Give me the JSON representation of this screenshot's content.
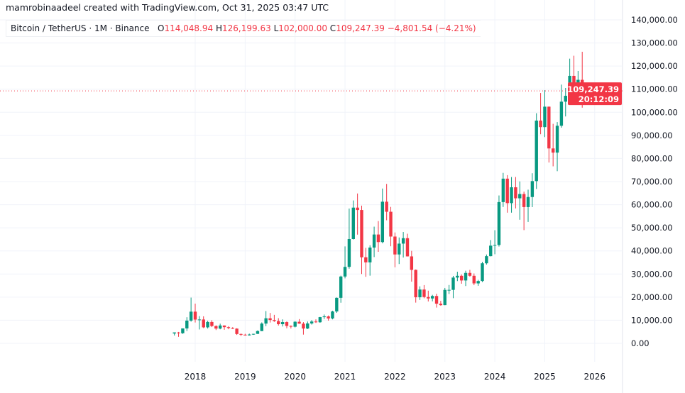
{
  "header": {
    "credit": "mamrobinaadeel created with TradingView.com, Oct 31, 2025 03:47 UTC",
    "symbol": "Bitcoin / TetherUS · 1M · Binance",
    "o_label": "O",
    "o": "114,048.94",
    "h_label": "H",
    "h": "126,199.63",
    "l_label": "L",
    "l": "102,000.00",
    "c_label": "C",
    "c": "109,247.39",
    "change": "−4,801.54 (−4.21%)"
  },
  "price_label": {
    "price": "109,247.39",
    "countdown": "20:12:09"
  },
  "colors": {
    "up": "#089981",
    "down": "#f23645",
    "grid": "#f0f3fa",
    "text": "#131722"
  },
  "chart_data": {
    "type": "candlestick",
    "interval": "1M",
    "y_axis_position": "right",
    "ylim": [
      0,
      140000
    ],
    "yticks": [
      "0.00",
      "10,000.00",
      "20,000.00",
      "30,000.00",
      "40,000.00",
      "50,000.00",
      "60,000.00",
      "70,000.00",
      "80,000.00",
      "90,000.00",
      "100,000.00",
      "110,000.00",
      "120,000.00",
      "130,000.00",
      "140,000.00"
    ],
    "xticks": [
      "2018",
      "2019",
      "2020",
      "2021",
      "2022",
      "2023",
      "2024",
      "2025",
      "2026"
    ],
    "grid": true,
    "last_price": 109247.39,
    "candles_fields": [
      "month",
      "open",
      "high",
      "low",
      "close"
    ],
    "candles": [
      [
        "2017-08",
        4261,
        4745,
        3400,
        4724
      ],
      [
        "2017-09",
        4689,
        4939,
        2817,
        4378
      ],
      [
        "2017-10",
        4378,
        6470,
        4110,
        6463
      ],
      [
        "2017-11",
        6463,
        11300,
        5325,
        9838
      ],
      [
        "2017-12",
        9838,
        19798,
        9380,
        13716
      ],
      [
        "2018-01",
        13716,
        17176,
        9035,
        10285
      ],
      [
        "2018-02",
        10285,
        11786,
        6000,
        10326
      ],
      [
        "2018-03",
        10326,
        11700,
        6600,
        6923
      ],
      [
        "2018-04",
        6923,
        9759,
        6430,
        9246
      ],
      [
        "2018-05",
        9246,
        10020,
        7034,
        7494
      ],
      [
        "2018-06",
        7494,
        7786,
        5755,
        6391
      ],
      [
        "2018-07",
        6391,
        8506,
        6070,
        7730
      ],
      [
        "2018-08",
        7730,
        7750,
        5880,
        7011
      ],
      [
        "2018-09",
        7011,
        7410,
        6100,
        6626
      ],
      [
        "2018-10",
        6626,
        7000,
        6200,
        6371
      ],
      [
        "2018-11",
        6371,
        6525,
        3652,
        4041
      ],
      [
        "2018-12",
        4041,
        4255,
        3156,
        3742
      ],
      [
        "2019-01",
        3742,
        4140,
        3349,
        3458
      ],
      [
        "2019-02",
        3458,
        4198,
        3373,
        3813
      ],
      [
        "2019-03",
        3813,
        4140,
        3670,
        4106
      ],
      [
        "2019-04",
        4106,
        5600,
        4038,
        5320
      ],
      [
        "2019-05",
        5320,
        9074,
        5300,
        8555
      ],
      [
        "2019-06",
        8555,
        13970,
        7440,
        10855
      ],
      [
        "2019-07",
        10855,
        13147,
        9010,
        10085
      ],
      [
        "2019-08",
        10085,
        12325,
        9320,
        9630
      ],
      [
        "2019-09",
        9630,
        10905,
        7710,
        8293
      ],
      [
        "2019-10",
        8293,
        10370,
        7300,
        9199
      ],
      [
        "2019-11",
        9199,
        9505,
        6515,
        7546
      ],
      [
        "2019-12",
        7546,
        7750,
        6435,
        7195
      ],
      [
        "2020-01",
        7195,
        9578,
        6871,
        9350
      ],
      [
        "2020-02",
        9350,
        10500,
        8450,
        8523
      ],
      [
        "2020-03",
        8523,
        9188,
        3782,
        6410
      ],
      [
        "2020-04",
        6410,
        9460,
        6150,
        8620
      ],
      [
        "2020-05",
        8620,
        10067,
        8117,
        9448
      ],
      [
        "2020-06",
        9448,
        10380,
        8833,
        9138
      ],
      [
        "2020-07",
        9138,
        11444,
        8893,
        11335
      ],
      [
        "2020-08",
        11335,
        12468,
        10518,
        11649
      ],
      [
        "2020-09",
        11649,
        12050,
        9825,
        10776
      ],
      [
        "2020-10",
        10776,
        14100,
        10375,
        13791
      ],
      [
        "2020-11",
        13791,
        19863,
        13195,
        19695
      ],
      [
        "2020-12",
        19695,
        29300,
        17572,
        28923
      ],
      [
        "2021-01",
        28923,
        41950,
        28130,
        33092
      ],
      [
        "2021-02",
        33092,
        58352,
        32296,
        45135
      ],
      [
        "2021-03",
        45134,
        61844,
        44950,
        58740
      ],
      [
        "2021-04",
        58739,
        64854,
        47044,
        57694
      ],
      [
        "2021-05",
        57697,
        59592,
        30000,
        37253
      ],
      [
        "2021-06",
        37254,
        41330,
        28805,
        35045
      ],
      [
        "2021-07",
        35045,
        42448,
        29278,
        41461
      ],
      [
        "2021-08",
        41461,
        50500,
        37332,
        47100
      ],
      [
        "2021-09",
        47100,
        52920,
        39600,
        43824
      ],
      [
        "2021-10",
        43820,
        66999,
        43283,
        61300
      ],
      [
        "2021-11",
        61300,
        69000,
        53256,
        56950
      ],
      [
        "2021-12",
        56950,
        59053,
        42000,
        46216
      ],
      [
        "2022-01",
        46216,
        47990,
        32917,
        38466
      ],
      [
        "2022-02",
        38466,
        45821,
        34322,
        43160
      ],
      [
        "2022-03",
        43160,
        48189,
        37155,
        45510
      ],
      [
        "2022-04",
        45510,
        47444,
        37578,
        37630
      ],
      [
        "2022-05",
        37630,
        40023,
        26700,
        31801
      ],
      [
        "2022-06",
        31801,
        31982,
        17622,
        19942
      ],
      [
        "2022-07",
        19942,
        24668,
        18781,
        23293
      ],
      [
        "2022-08",
        23296,
        25211,
        19520,
        20050
      ],
      [
        "2022-09",
        20048,
        22800,
        18125,
        19422
      ],
      [
        "2022-10",
        19422,
        20988,
        18190,
        20491
      ],
      [
        "2022-11",
        20490,
        21480,
        15476,
        17164
      ],
      [
        "2022-12",
        17165,
        18387,
        16256,
        16542
      ],
      [
        "2023-01",
        16541,
        23960,
        16499,
        23125
      ],
      [
        "2023-02",
        23125,
        25250,
        21351,
        23141
      ],
      [
        "2023-03",
        23141,
        29184,
        19549,
        28465
      ],
      [
        "2023-04",
        28465,
        31000,
        26942,
        29233
      ],
      [
        "2023-05",
        29233,
        29820,
        25811,
        27210
      ],
      [
        "2023-06",
        27210,
        31431,
        24800,
        30472
      ],
      [
        "2023-07",
        30472,
        31804,
        28861,
        29232
      ],
      [
        "2023-08",
        29232,
        30244,
        25166,
        25940
      ],
      [
        "2023-09",
        25940,
        27483,
        24901,
        26962
      ],
      [
        "2023-10",
        26962,
        35280,
        26538,
        34639
      ],
      [
        "2023-11",
        34639,
        38450,
        34097,
        37723
      ],
      [
        "2023-12",
        37723,
        44700,
        37630,
        42283
      ],
      [
        "2024-01",
        42283,
        48969,
        38555,
        42580
      ],
      [
        "2024-02",
        42580,
        64000,
        41884,
        61130
      ],
      [
        "2024-03",
        61130,
        73777,
        59005,
        71280
      ],
      [
        "2024-04",
        71280,
        72797,
        56552,
        60672
      ],
      [
        "2024-05",
        60672,
        71979,
        56555,
        67540
      ],
      [
        "2024-06",
        67540,
        71997,
        58402,
        62772
      ],
      [
        "2024-07",
        62772,
        70080,
        53485,
        64628
      ],
      [
        "2024-08",
        64628,
        65660,
        49000,
        58974
      ],
      [
        "2024-09",
        58974,
        66498,
        52550,
        63328
      ],
      [
        "2024-10",
        63328,
        73620,
        58946,
        70215
      ],
      [
        "2024-11",
        70215,
        99588,
        66835,
        96408
      ],
      [
        "2024-12",
        96408,
        108353,
        90500,
        93576
      ],
      [
        "2025-01",
        93576,
        109588,
        89256,
        102429
      ],
      [
        "2025-02",
        102429,
        102500,
        78258,
        84350
      ],
      [
        "2025-03",
        84350,
        95000,
        76606,
        82550
      ],
      [
        "2025-04",
        82550,
        95758,
        74508,
        94172
      ],
      [
        "2025-05",
        94172,
        111980,
        93346,
        104591
      ],
      [
        "2025-06",
        104591,
        110530,
        98200,
        107135
      ],
      [
        "2025-07",
        107135,
        123218,
        105100,
        115764
      ],
      [
        "2025-08",
        115764,
        124474,
        107350,
        108246
      ],
      [
        "2025-09",
        108246,
        117900,
        107255,
        114048
      ],
      [
        "2025-10",
        114048.94,
        126199.63,
        102000,
        109247.39
      ]
    ]
  }
}
